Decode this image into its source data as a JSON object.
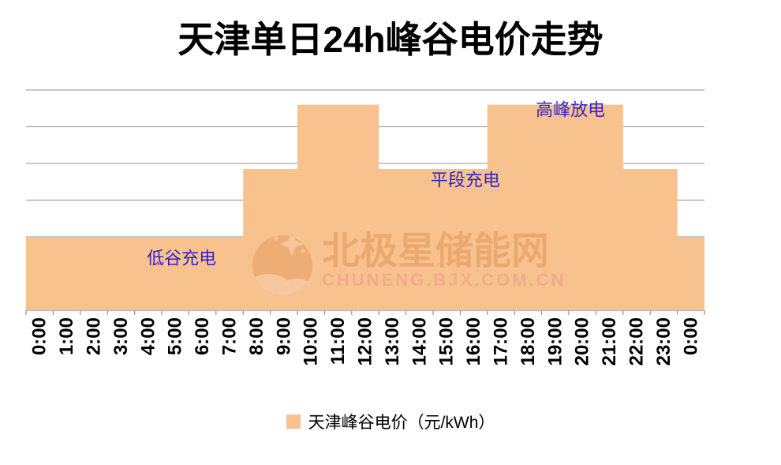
{
  "title": "天津单日24h峰谷电价走势",
  "legend": {
    "label": "天津峰谷电价（元/kWh）"
  },
  "watermark": {
    "line1": "北极星储能网",
    "line2": "CHUNENG.BJX.COM.CN"
  },
  "colors": {
    "area_fill": "#f8c28e",
    "gridline": "#a6a6a6",
    "axis": "#999999",
    "text": "#000000",
    "annotation": "#2f23cf",
    "watermark_main": "#dd8e50",
    "watermark_sub": "#e89a86",
    "watermark_cutout": "#f7c9a2"
  },
  "chart_data": {
    "type": "area",
    "title": "天津单日24h峰谷电价走势",
    "categories": [
      "0:00",
      "1:00",
      "2:00",
      "3:00",
      "4:00",
      "5:00",
      "6:00",
      "7:00",
      "8:00",
      "9:00",
      "10:00",
      "11:00",
      "12:00",
      "13:00",
      "14:00",
      "15:00",
      "16:00",
      "17:00",
      "18:00",
      "19:00",
      "20:00",
      "21:00",
      "22:00",
      "23:00",
      "0:00"
    ],
    "series": [
      {
        "name": "天津峰谷电价（元/kWh）",
        "values": [
          0.4,
          0.4,
          0.4,
          0.4,
          0.4,
          0.4,
          0.4,
          0.4,
          0.77,
          0.77,
          1.12,
          1.12,
          1.12,
          0.77,
          0.77,
          0.77,
          0.77,
          1.12,
          1.12,
          1.12,
          1.12,
          1.12,
          0.77,
          0.77,
          0.4
        ]
      }
    ],
    "xlabel": "",
    "ylabel": "",
    "ylim": [
      0,
      1.2
    ],
    "y_gridline_step": 0.2,
    "y_axis_labels_shown": false,
    "x_tick_label_rotation_deg": -90,
    "grid": "horizontal",
    "legend_position": "bottom",
    "price_levels": {
      "valley": 0.4,
      "flat": 0.77,
      "peak": 1.12
    },
    "annotations": [
      {
        "text": "低谷充电",
        "cat_x": 5.73,
        "val_y": 0.284
      },
      {
        "text": "平段充电",
        "cat_x": 16.19,
        "val_y": 0.71
      },
      {
        "text": "高峰放电",
        "cat_x": 20.06,
        "val_y": 1.092
      }
    ]
  }
}
